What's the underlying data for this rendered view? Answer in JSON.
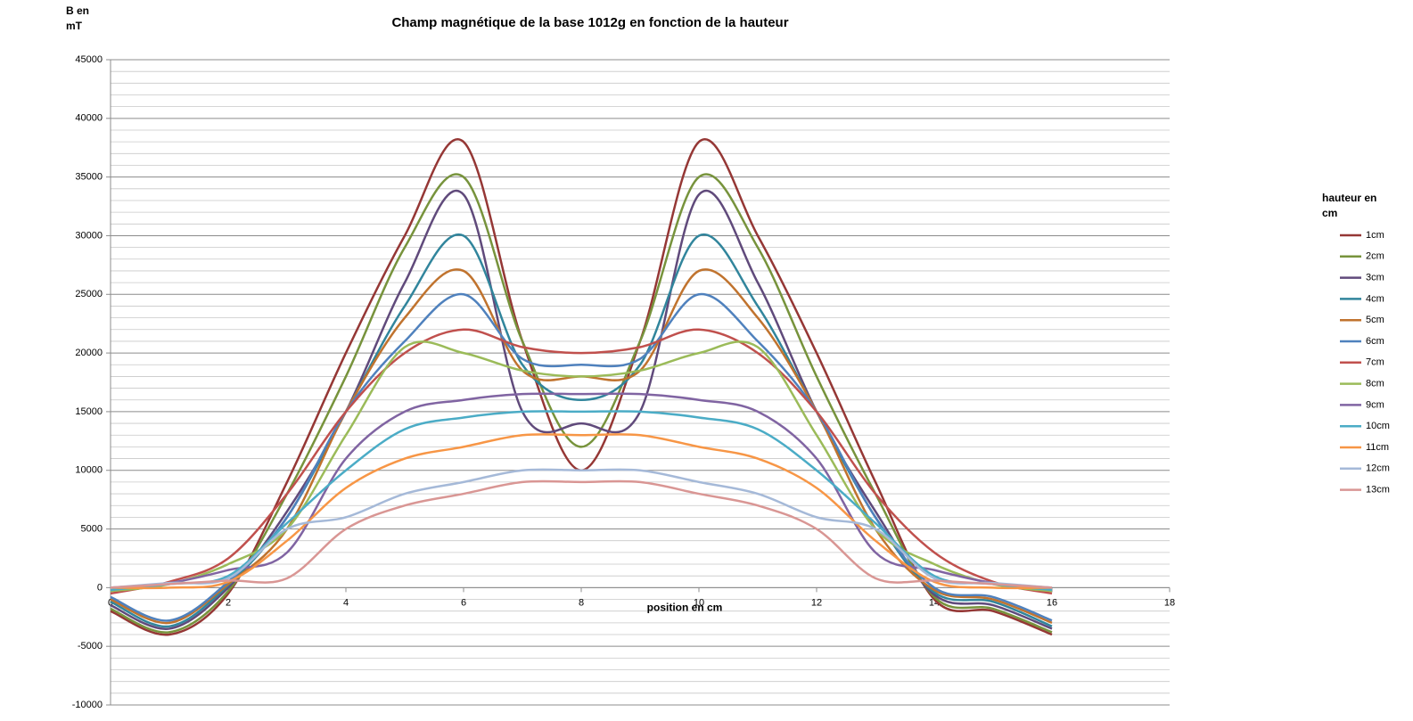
{
  "chart_data": {
    "type": "line",
    "title": "Champ magnétique de la base 1012g en fonction de la hauteur",
    "y_label": "B en mT",
    "x_label": "position en cm",
    "legend_title": "hauteur en cm",
    "x": [
      0,
      1,
      2,
      3,
      4,
      5,
      6,
      7,
      8,
      9,
      10,
      11,
      12,
      13,
      14,
      15,
      16
    ],
    "xlim": [
      0,
      18
    ],
    "xticks": [
      0,
      2,
      4,
      6,
      8,
      10,
      12,
      14,
      16,
      18
    ],
    "ylim": [
      -10000,
      45000
    ],
    "yticks": [
      -10000,
      -5000,
      0,
      5000,
      10000,
      15000,
      20000,
      25000,
      30000,
      35000,
      40000,
      45000
    ],
    "minor_yticks": [
      -9000,
      -8000,
      -7000,
      -6000,
      -4000,
      -3000,
      -2000,
      -1000,
      1000,
      2000,
      3000,
      4000,
      6000,
      7000,
      8000,
      9000,
      11000,
      12000,
      13000,
      14000,
      16000,
      17000,
      18000,
      19000,
      21000,
      22000,
      23000,
      24000,
      26000,
      27000,
      28000,
      29000,
      31000,
      32000,
      33000,
      34000,
      36000,
      37000,
      38000,
      39000,
      41000,
      42000,
      43000,
      44000
    ],
    "grid": true,
    "smooth": true,
    "legend": "right",
    "series": [
      {
        "name": "1cm",
        "color": "#953735",
        "values": [
          -2000,
          -4000,
          -500,
          9000,
          20000,
          30000,
          38000,
          21000,
          10000,
          21000,
          38000,
          30000,
          20000,
          9000,
          -1000,
          -2000,
          -4000
        ]
      },
      {
        "name": "2cm",
        "color": "#77933c",
        "values": [
          -1800,
          -3800,
          -300,
          8000,
          18000,
          29000,
          35000,
          21000,
          12000,
          21000,
          35000,
          29000,
          18000,
          8000,
          -800,
          -1800,
          -3800
        ]
      },
      {
        "name": "3cm",
        "color": "#604a7b",
        "values": [
          -1500,
          -3500,
          0,
          6500,
          15000,
          26000,
          33500,
          15000,
          14000,
          15000,
          33500,
          26000,
          15000,
          6500,
          -600,
          -1500,
          -3500
        ]
      },
      {
        "name": "4cm",
        "color": "#31859c",
        "values": [
          -1200,
          -3300,
          200,
          6000,
          15000,
          24000,
          30000,
          19000,
          16000,
          19000,
          30000,
          24000,
          15000,
          6000,
          -400,
          -1200,
          -3300
        ]
      },
      {
        "name": "5cm",
        "color": "#c0732e",
        "values": [
          -1000,
          -3000,
          300,
          5000,
          15000,
          23000,
          27000,
          18500,
          18000,
          18500,
          27000,
          23000,
          15000,
          5000,
          -200,
          -1000,
          -3000
        ]
      },
      {
        "name": "6cm",
        "color": "#4f81bd",
        "values": [
          -800,
          -2800,
          500,
          6000,
          15000,
          21000,
          25000,
          19500,
          19000,
          19500,
          25000,
          21000,
          15000,
          6000,
          0,
          -800,
          -2800
        ]
      },
      {
        "name": "7cm",
        "color": "#c0504d",
        "values": [
          -500,
          500,
          2500,
          8000,
          15000,
          20000,
          22000,
          20500,
          20000,
          20500,
          22000,
          20000,
          15000,
          8000,
          3000,
          500,
          -500
        ]
      },
      {
        "name": "8cm",
        "color": "#9bbb59",
        "values": [
          -300,
          300,
          2000,
          5000,
          13000,
          20500,
          20000,
          18500,
          18000,
          18500,
          20000,
          20500,
          13000,
          5000,
          2000,
          300,
          -300
        ]
      },
      {
        "name": "9cm",
        "color": "#8064a2",
        "values": [
          0,
          400,
          1500,
          3000,
          11000,
          15000,
          16000,
          16500,
          16500,
          16500,
          16000,
          15000,
          11000,
          3000,
          1500,
          400,
          0
        ]
      },
      {
        "name": "10cm",
        "color": "#4bacc6",
        "values": [
          -200,
          300,
          1000,
          5500,
          10000,
          13500,
          14500,
          15000,
          15000,
          15000,
          14500,
          13500,
          10000,
          5500,
          1000,
          300,
          -200
        ]
      },
      {
        "name": "11cm",
        "color": "#f79646",
        "values": [
          0,
          0,
          500,
          4000,
          8500,
          11000,
          12000,
          13000,
          13000,
          13000,
          12000,
          11000,
          8500,
          4000,
          500,
          0,
          0
        ]
      },
      {
        "name": "12cm",
        "color": "#a5b9d8",
        "values": [
          0,
          400,
          800,
          5000,
          6000,
          8000,
          9000,
          10000,
          10000,
          10000,
          9000,
          8000,
          6000,
          5000,
          800,
          400,
          0
        ]
      },
      {
        "name": "13cm",
        "color": "#d99694",
        "values": [
          0,
          300,
          600,
          800,
          5000,
          7000,
          8000,
          9000,
          9000,
          9000,
          8000,
          7000,
          5000,
          800,
          600,
          300,
          0
        ]
      }
    ]
  }
}
